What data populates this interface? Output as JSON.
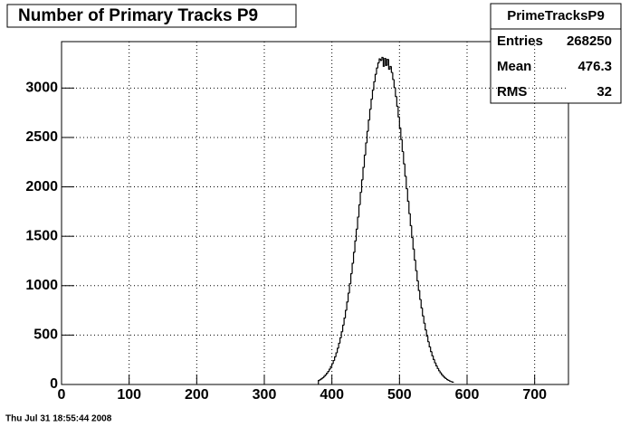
{
  "chart_data": {
    "type": "histogram",
    "title": "Number of Primary Tracks P9",
    "footer": "Thu Jul 31 18:55:44 2008",
    "color": "#000000",
    "grid": true,
    "xlim": [
      0,
      750
    ],
    "ylim": [
      0,
      3470
    ],
    "xticks": [
      0,
      100,
      200,
      300,
      400,
      500,
      600,
      700
    ],
    "yticks": [
      0,
      500,
      1000,
      1500,
      2000,
      2500,
      3000
    ],
    "stats_box": {
      "name": "PrimeTracksP9",
      "rows": [
        {
          "label": "Entries",
          "value": "268250"
        },
        {
          "label": "Mean",
          "value": "476.3"
        },
        {
          "label": "RMS",
          "value": "32"
        }
      ]
    },
    "bins": [
      380,
      382,
      384,
      386,
      388,
      390,
      392,
      394,
      396,
      398,
      400,
      402,
      404,
      406,
      408,
      410,
      412,
      414,
      416,
      418,
      420,
      422,
      424,
      426,
      428,
      430,
      432,
      434,
      436,
      438,
      440,
      442,
      444,
      446,
      448,
      450,
      452,
      454,
      456,
      458,
      460,
      462,
      464,
      466,
      468,
      470,
      472,
      474,
      476,
      478,
      480,
      482,
      484,
      486,
      488,
      490,
      492,
      494,
      496,
      498,
      500,
      502,
      504,
      506,
      508,
      510,
      512,
      514,
      516,
      518,
      520,
      522,
      524,
      526,
      528,
      530,
      532,
      534,
      536,
      538,
      540,
      542,
      544,
      546,
      548,
      550,
      552,
      554,
      556,
      558,
      560,
      562,
      564,
      566,
      568,
      570,
      572,
      574,
      576,
      578,
      580
    ],
    "values": [
      40,
      48,
      57,
      68,
      81,
      96,
      113,
      132,
      155,
      181,
      210,
      242,
      279,
      320,
      366,
      417,
      472,
      533,
      600,
      672,
      750,
      834,
      924,
      1019,
      1121,
      1226,
      1337,
      1452,
      1571,
      1693,
      1818,
      1944,
      2070,
      2196,
      2321,
      2444,
      2562,
      2676,
      2785,
      2886,
      2979,
      3063,
      3138,
      3202,
      3254,
      3295,
      3280,
      3310,
      3220,
      3300,
      3230,
      3290,
      3190,
      3219,
      3158,
      3087,
      3005,
      2915,
      2816,
      2709,
      2597,
      2480,
      2358,
      2234,
      2108,
      1982,
      1855,
      1730,
      1608,
      1488,
      1371,
      1259,
      1152,
      1049,
      952,
      861,
      775,
      695,
      621,
      553,
      490,
      433,
      381,
      333,
      291,
      253,
      219,
      189,
      162,
      139,
      119,
      101,
      85,
      72,
      60,
      50,
      42,
      35,
      29,
      24,
      19
    ]
  }
}
